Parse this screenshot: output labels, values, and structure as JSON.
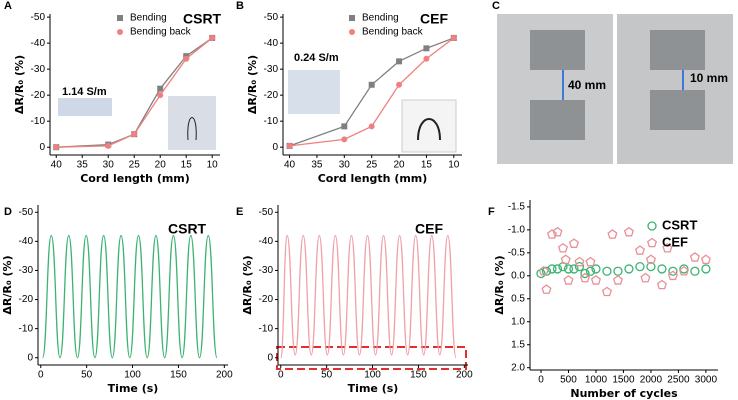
{
  "panel_c": {
    "label": "C",
    "annotations": [
      "40 mm",
      "10 mm"
    ]
  },
  "chart_data": [
    {
      "type": "line",
      "label": "A",
      "xlabel": "Cord length (mm)",
      "ylabel": "ΔR/R₀ (%)",
      "x": [
        40,
        30,
        25,
        20,
        15,
        10
      ],
      "xlim": [
        41.2,
        8.5
      ],
      "xticks": [
        40,
        35,
        30,
        25,
        20,
        15,
        10
      ],
      "ylim": [
        3,
        -51.2
      ],
      "yticks": [
        0,
        -10,
        -20,
        -30,
        -40,
        -50
      ],
      "series": [
        {
          "name": "Bending",
          "color": "#808080",
          "marker": "square",
          "values": [
            0,
            -1,
            -5,
            -22.5,
            -35,
            -42
          ]
        },
        {
          "name": "Bending back",
          "color": "#f08080",
          "marker": "circle",
          "values": [
            0,
            -0.5,
            -5,
            -20,
            -34,
            -42
          ]
        }
      ],
      "annotations": [
        {
          "text": "CSRT",
          "color": "#3cb371"
        },
        {
          "text": "1.14 S/m",
          "color": "#000000"
        }
      ]
    },
    {
      "type": "line",
      "label": "B",
      "xlabel": "Cord length (mm)",
      "ylabel": "ΔR/R₀ (%)",
      "x": [
        40,
        30,
        25,
        20,
        15,
        10
      ],
      "xlim": [
        41.2,
        8.5
      ],
      "xticks": [
        40,
        35,
        30,
        25,
        20,
        15,
        10
      ],
      "ylim": [
        3,
        -51.2
      ],
      "yticks": [
        0,
        -10,
        -20,
        -30,
        -40,
        -50
      ],
      "series": [
        {
          "name": "Bending",
          "color": "#808080",
          "marker": "square",
          "values": [
            -0.5,
            -8,
            -24,
            -33,
            -38,
            -42
          ]
        },
        {
          "name": "Bending back",
          "color": "#f08080",
          "marker": "circle",
          "values": [
            -0.5,
            -3,
            -8,
            -24,
            -34,
            -42
          ]
        }
      ],
      "annotations": [
        {
          "text": "CEF",
          "color": "#f0a0a0"
        },
        {
          "text": "0.24 S/m",
          "color": "#000000"
        }
      ]
    },
    {
      "type": "line",
      "smooth": true,
      "label": "D",
      "xlabel": "Time (s)",
      "ylabel": "ΔR/R₀ (%)",
      "x": [
        2,
        11.5,
        21,
        30.5,
        40,
        49.5,
        59,
        68.5,
        78,
        87.5,
        97,
        106.5,
        116,
        125.5,
        135,
        144.5,
        154,
        163.5,
        173,
        182.5,
        192
      ],
      "xlim": [
        -3,
        204
      ],
      "xticks": [
        0,
        50,
        100,
        150,
        200
      ],
      "ylim": [
        2.5,
        -52.5
      ],
      "yticks": [
        0,
        -10,
        -20,
        -30,
        -40,
        -50
      ],
      "series": [
        {
          "name": "CSRT",
          "color": "#3cb371",
          "values": [
            0,
            -42,
            0,
            -42,
            0,
            -42,
            0,
            -42,
            0,
            -42,
            0,
            -42,
            0,
            -42,
            0,
            -42,
            0,
            -42,
            0,
            -42,
            0
          ]
        }
      ],
      "annotations": [
        {
          "text": "CSRT",
          "color": "#3cb371"
        }
      ]
    },
    {
      "type": "line",
      "smooth": true,
      "label": "E",
      "xlabel": "Time (s)",
      "ylabel": "ΔR/R₀ (%)",
      "x": [
        0,
        7,
        15.75,
        24.5,
        33.25,
        42,
        50.75,
        59.5,
        68.25,
        77,
        85.75,
        94.5,
        103.25,
        112,
        120.75,
        129.5,
        138.25,
        147,
        155.75,
        164.5,
        173.25,
        182,
        191
      ],
      "xlim": [
        -3,
        204
      ],
      "xticks": [
        0,
        50,
        100,
        150,
        200
      ],
      "ylim": [
        2.5,
        -52.5
      ],
      "yticks": [
        0,
        -10,
        -20,
        -30,
        -40,
        -50
      ],
      "series": [
        {
          "name": "CEF",
          "color": "#f0a0a8",
          "values": [
            0,
            -42,
            -1,
            -42,
            -1,
            -42,
            -1,
            -42,
            -1,
            -42,
            -1,
            -42,
            -1,
            -42,
            -1,
            -42,
            -1,
            -42,
            -1,
            -42,
            -1,
            -42,
            0
          ]
        }
      ],
      "annotations": [
        {
          "text": "CEF",
          "color": "#f0a0a0"
        }
      ]
    },
    {
      "type": "scatter",
      "label": "F",
      "xlabel": "Number of cycles",
      "ylabel": "ΔR/R₀ (%)",
      "xlim": [
        -200,
        3220
      ],
      "xticks": [
        0,
        500,
        1000,
        1500,
        2000,
        2500,
        3000
      ],
      "ylim": [
        2.05,
        -1.65
      ],
      "yticks": [
        -1.5,
        {
          "value": -1,
          "label": "-1.0"
        },
        -0.5,
        {
          "value": 0,
          "label": "0.0"
        },
        0.5,
        {
          "value": 1,
          "label": "1.0"
        },
        1.5,
        {
          "value": 2,
          "label": "2.0"
        }
      ],
      "series": [
        {
          "name": "CSRT",
          "color": "#3cb371",
          "marker": "circle",
          "x": [
            0,
            100,
            200,
            300,
            400,
            500,
            600,
            700,
            800,
            900,
            1000,
            1200,
            1400,
            1600,
            1800,
            2000,
            2200,
            2400,
            2600,
            2800,
            3000
          ],
          "values": [
            -0.05,
            -0.1,
            -0.15,
            -0.15,
            -0.2,
            -0.15,
            -0.15,
            -0.2,
            -0.05,
            -0.1,
            -0.15,
            -0.1,
            -0.1,
            -0.15,
            -0.2,
            -0.2,
            -0.15,
            -0.1,
            -0.15,
            -0.1,
            -0.15
          ]
        },
        {
          "name": "CEF",
          "color": "#e89098",
          "marker": "pentagon",
          "x": [
            50,
            100,
            200,
            300,
            400,
            450,
            500,
            600,
            700,
            800,
            900,
            1000,
            1200,
            1300,
            1400,
            1600,
            1800,
            1900,
            2000,
            2200,
            2300,
            2400,
            2600,
            2800,
            3000
          ],
          "values": [
            -0.1,
            0.3,
            -0.9,
            -0.95,
            -0.6,
            -0.35,
            0.1,
            -0.7,
            -0.3,
            0.05,
            -0.3,
            0.1,
            0.35,
            -0.9,
            0.1,
            -0.95,
            -0.55,
            0.05,
            -0.35,
            0.2,
            -0.6,
            0.0,
            -0.1,
            -0.4,
            -0.35
          ]
        }
      ]
    }
  ]
}
